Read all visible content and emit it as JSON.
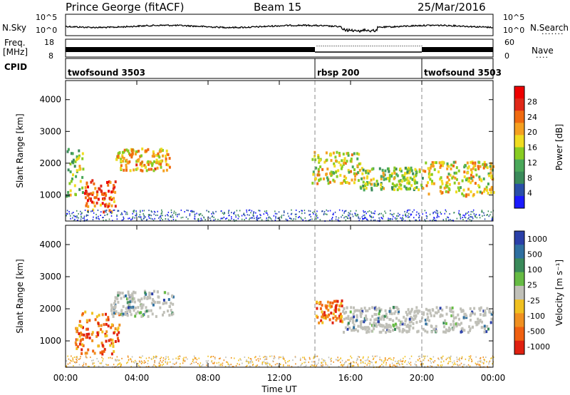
{
  "header": {
    "station": "Prince George (fitACF)",
    "beam": "Beam 15",
    "date": "25/Mar/2016"
  },
  "left_labels": {
    "nsky": "N.Sky",
    "freq": "Freq.",
    "freq_unit": "[MHz]",
    "cpid": "CPID"
  },
  "right_labels": {
    "nsearch": "N.Search",
    "nave": "Nave"
  },
  "noise_panel": {
    "axis_ticks_left": [
      "10^5",
      "10^0"
    ],
    "axis_ticks_right": [
      "10^5",
      "10^0"
    ]
  },
  "freq_panel": {
    "left_ticks": [
      "18",
      "8"
    ],
    "right_ticks": [
      "60",
      "0"
    ]
  },
  "cpid_panel": {
    "segments": [
      {
        "label": "twofsound 3503",
        "start_hour": 0,
        "end_hour": 14
      },
      {
        "label": "rbsp 200",
        "start_hour": 14,
        "end_hour": 20
      },
      {
        "label": "twofsound 3503",
        "start_hour": 20,
        "end_hour": 24
      }
    ]
  },
  "colors": {
    "power_scale": [
      "#1a1aff",
      "#2a4fa8",
      "#3a8a5a",
      "#4aa85a",
      "#88cc22",
      "#f0dc20",
      "#f5a020",
      "#f06a10",
      "#e02818",
      "#ee0000"
    ],
    "velocity_scale": [
      "#2a3fa8",
      "#2e6fa0",
      "#3a8a5a",
      "#66bb44",
      "#c0c0b8",
      "#f0c020",
      "#f09020",
      "#f06010",
      "#e02010"
    ],
    "ground_scatter": "#c0c0b8"
  },
  "chart_data": [
    {
      "type": "heatmap",
      "panel": "power",
      "ylabel": "Slant Range [km]",
      "ylim": [
        180,
        4600
      ],
      "xlim": [
        0,
        24
      ],
      "y_ticks": [
        1000,
        2000,
        3000,
        4000
      ],
      "colorbar": {
        "label": "Power [dB]",
        "ticks": [
          "4",
          "8",
          "12",
          "16",
          "20",
          "24",
          "28"
        ],
        "range": [
          0,
          32
        ]
      },
      "scatter_regions": [
        {
          "start_hour": 0.0,
          "end_hour": 1.0,
          "range_km": [
            1000,
            2600
          ],
          "power_db": 14
        },
        {
          "start_hour": 1.0,
          "end_hour": 2.8,
          "range_km": [
            500,
            1500
          ],
          "power_db": 26
        },
        {
          "start_hour": 2.8,
          "end_hour": 5.8,
          "range_km": [
            1800,
            2500
          ],
          "power_db": 20
        },
        {
          "start_hour": 13.8,
          "end_hour": 16.5,
          "range_km": [
            1400,
            2400
          ],
          "power_db": 18
        },
        {
          "start_hour": 16.5,
          "end_hour": 20.0,
          "range_km": [
            1200,
            1900
          ],
          "power_db": 14
        },
        {
          "start_hour": 20.0,
          "end_hour": 24.0,
          "range_km": [
            1000,
            2100
          ],
          "power_db": 18
        }
      ]
    },
    {
      "type": "heatmap",
      "panel": "velocity",
      "ylabel": "Slant Range [km]",
      "xlabel": "Time UT",
      "ylim": [
        180,
        4600
      ],
      "xlim": [
        0,
        24
      ],
      "y_ticks": [
        1000,
        2000,
        3000,
        4000
      ],
      "x_ticks": [
        "00:00",
        "04:00",
        "08:00",
        "12:00",
        "16:00",
        "20:00",
        "00:00"
      ],
      "colorbar": {
        "label": "Velocity [m s⁻¹]",
        "ticks": [
          "1000",
          "500",
          "100",
          "25",
          "-25",
          "-100",
          "-500",
          "-1000"
        ]
      },
      "scatter_regions": [
        {
          "start_hour": 0.5,
          "end_hour": 3.0,
          "range_km": [
            600,
            2000
          ],
          "velocity_ms": -300
        },
        {
          "start_hour": 2.5,
          "end_hour": 6.0,
          "range_km": [
            1800,
            2600
          ],
          "velocity_ms": 0
        },
        {
          "start_hour": 14.0,
          "end_hour": 15.5,
          "range_km": [
            1600,
            2300
          ],
          "velocity_ms": -400
        },
        {
          "start_hour": 15.5,
          "end_hour": 24.0,
          "range_km": [
            1300,
            2100
          ],
          "velocity_ms": 0
        }
      ]
    }
  ]
}
